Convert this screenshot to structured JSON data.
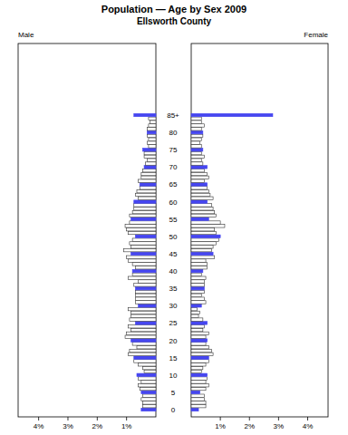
{
  "chart_data": {
    "type": "bar",
    "orientation": "horizontal",
    "title": "Population — Age by Sex 2009",
    "subtitle": "Ellsworth County",
    "categories": [
      "0",
      null,
      null,
      null,
      null,
      "5",
      null,
      null,
      null,
      null,
      "10",
      null,
      null,
      null,
      null,
      "15",
      null,
      null,
      null,
      null,
      "20",
      null,
      null,
      null,
      null,
      "25",
      null,
      null,
      null,
      null,
      "30",
      null,
      null,
      null,
      null,
      "35",
      null,
      null,
      null,
      null,
      "40",
      null,
      null,
      null,
      null,
      "45",
      null,
      null,
      null,
      null,
      "50",
      null,
      null,
      null,
      null,
      "55",
      null,
      null,
      null,
      null,
      "60",
      null,
      null,
      null,
      null,
      "65",
      null,
      null,
      null,
      null,
      "70",
      null,
      null,
      null,
      null,
      "75",
      null,
      null,
      null,
      null,
      "80",
      null,
      null,
      null,
      null,
      "85+"
    ],
    "series": [
      {
        "name": "Male",
        "color": "#4646f0",
        "values": [
          0.5,
          0.45,
          0.45,
          0.5,
          0.45,
          0.5,
          0.55,
          0.6,
          0.5,
          0.6,
          0.65,
          0.4,
          0.45,
          0.6,
          0.75,
          0.75,
          0.95,
          0.9,
          0.65,
          0.8,
          0.85,
          1.05,
          1.0,
          0.85,
          0.95,
          0.7,
          0.9,
          0.85,
          0.85,
          0.95,
          0.6,
          0.7,
          0.7,
          0.7,
          0.7,
          0.7,
          0.75,
          0.6,
          0.95,
          0.8,
          0.8,
          0.7,
          0.8,
          0.95,
          1.0,
          0.85,
          1.1,
          0.85,
          0.9,
          0.8,
          0.7,
          0.95,
          1.0,
          1.05,
          0.9,
          0.85,
          0.9,
          0.8,
          0.75,
          0.75,
          0.75,
          0.6,
          0.7,
          0.65,
          0.55,
          0.55,
          0.6,
          0.5,
          0.5,
          0.45,
          0.4,
          0.35,
          0.3,
          0.4,
          0.4,
          0.45,
          0.25,
          0.3,
          0.25,
          0.3,
          0.3,
          0.3,
          0.25,
          0.2,
          0.25,
          0.75
        ]
      },
      {
        "name": "Female",
        "color": "#4646f0",
        "values": [
          0.25,
          0.5,
          0.5,
          0.45,
          0.45,
          0.3,
          0.5,
          0.6,
          0.5,
          0.55,
          0.55,
          0.35,
          0.4,
          0.5,
          0.6,
          0.6,
          0.75,
          0.7,
          0.6,
          0.5,
          0.55,
          0.5,
          0.6,
          0.4,
          0.45,
          0.55,
          0.4,
          0.25,
          0.3,
          0.2,
          0.35,
          0.5,
          0.45,
          0.35,
          0.45,
          0.45,
          0.45,
          0.45,
          0.5,
          0.35,
          0.4,
          0.55,
          0.55,
          0.5,
          0.8,
          0.75,
          0.7,
          0.75,
          0.85,
          0.95,
          1.0,
          0.85,
          0.8,
          1.15,
          1.0,
          0.6,
          0.85,
          0.8,
          0.75,
          0.7,
          0.55,
          0.75,
          0.65,
          0.6,
          0.55,
          0.55,
          0.45,
          0.6,
          0.55,
          0.45,
          0.55,
          0.4,
          0.35,
          0.45,
          0.35,
          0.4,
          0.35,
          0.3,
          0.35,
          0.4,
          0.4,
          0.35,
          0.45,
          0.35,
          0.35,
          2.8
        ]
      }
    ],
    "xlim": [
      0,
      4.7
    ],
    "xticks": [
      {
        "value": 1,
        "label": "1%"
      },
      {
        "value": 2,
        "label": "2%"
      },
      {
        "value": 3,
        "label": "3%"
      },
      {
        "value": 4,
        "label": "4%"
      }
    ]
  }
}
